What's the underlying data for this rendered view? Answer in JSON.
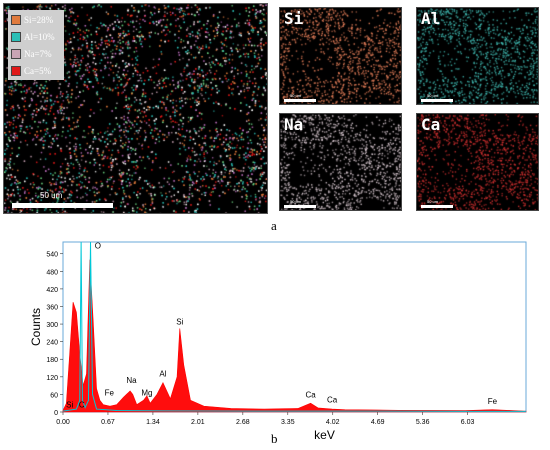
{
  "figure_a": {
    "caption": "a",
    "legend": [
      {
        "label": "Si=28%",
        "color": "#e07a3c"
      },
      {
        "label": "Al=10%",
        "color": "#2bbfb6"
      },
      {
        "label": "Na=7%",
        "color": "#c9a4b4"
      },
      {
        "label": "Ca=5%",
        "color": "#e01818"
      }
    ],
    "main_scale_label": "50 um",
    "maps": [
      {
        "element": "Si",
        "color": "#e8805a"
      },
      {
        "element": "Al",
        "color": "#3fb8b0"
      },
      {
        "element": "Na",
        "color": "#d8c8d0"
      },
      {
        "element": "Ca",
        "color": "#d03030"
      }
    ],
    "small_scale_label": "50 um"
  },
  "figure_b": {
    "caption": "b",
    "chart_data": {
      "type": "area",
      "title": "",
      "xlabel": "keV",
      "ylabel": "Counts",
      "xlim": [
        0,
        6.9
      ],
      "ylim": [
        0,
        580
      ],
      "x_ticks": [
        "0.00",
        "0.67",
        "1.34",
        "2.01",
        "2.68",
        "3.35",
        "4.02",
        "4.69",
        "5.36",
        "6.03"
      ],
      "y_ticks": [
        "0",
        "60",
        "120",
        "180",
        "240",
        "300",
        "360",
        "420",
        "480",
        "540"
      ],
      "series": [
        {
          "color": "#ff0000",
          "x": [
            0.0,
            0.05,
            0.1,
            0.15,
            0.2,
            0.25,
            0.3,
            0.35,
            0.4,
            0.45,
            0.5,
            0.55,
            0.6,
            0.7,
            0.8,
            0.9,
            1.0,
            1.04,
            1.1,
            1.2,
            1.25,
            1.3,
            1.4,
            1.49,
            1.6,
            1.7,
            1.74,
            1.8,
            1.9,
            2.1,
            2.5,
            3.0,
            3.5,
            3.69,
            3.8,
            4.01,
            4.2,
            5.0,
            6.0,
            6.4,
            6.9
          ],
          "y": [
            5,
            30,
            200,
            375,
            340,
            200,
            90,
            130,
            520,
            310,
            80,
            40,
            25,
            20,
            25,
            50,
            72,
            60,
            25,
            40,
            55,
            30,
            60,
            100,
            45,
            120,
            285,
            160,
            40,
            20,
            12,
            10,
            12,
            30,
            14,
            10,
            8,
            6,
            5,
            8,
            3
          ]
        },
        {
          "color": "#00c8d8",
          "x": [
            0.0,
            0.2,
            0.25,
            0.27,
            0.29,
            0.33,
            0.38,
            0.41,
            0.44,
            0.5,
            0.8,
            1.5,
            3.0,
            4.5,
            6.0,
            6.9
          ],
          "y": [
            3,
            10,
            40,
            580,
            40,
            15,
            40,
            580,
            60,
            10,
            5,
            4,
            3,
            3,
            2,
            2
          ]
        }
      ],
      "annotations": [
        {
          "label": "Si",
          "x": 0.1,
          "y": 2
        },
        {
          "label": "C",
          "x": 0.28,
          "y": 2
        },
        {
          "label": "O",
          "x": 0.52,
          "y": 545
        },
        {
          "label": "Fe",
          "x": 0.69,
          "y": 43
        },
        {
          "label": "Na",
          "x": 1.02,
          "y": 85
        },
        {
          "label": "Mg",
          "x": 1.25,
          "y": 42
        },
        {
          "label": "Al",
          "x": 1.49,
          "y": 108
        },
        {
          "label": "Si",
          "x": 1.74,
          "y": 285
        },
        {
          "label": "Ca",
          "x": 3.69,
          "y": 35
        },
        {
          "label": "Ca",
          "x": 4.01,
          "y": 18
        },
        {
          "label": "Fe",
          "x": 6.4,
          "y": 14
        }
      ]
    }
  }
}
